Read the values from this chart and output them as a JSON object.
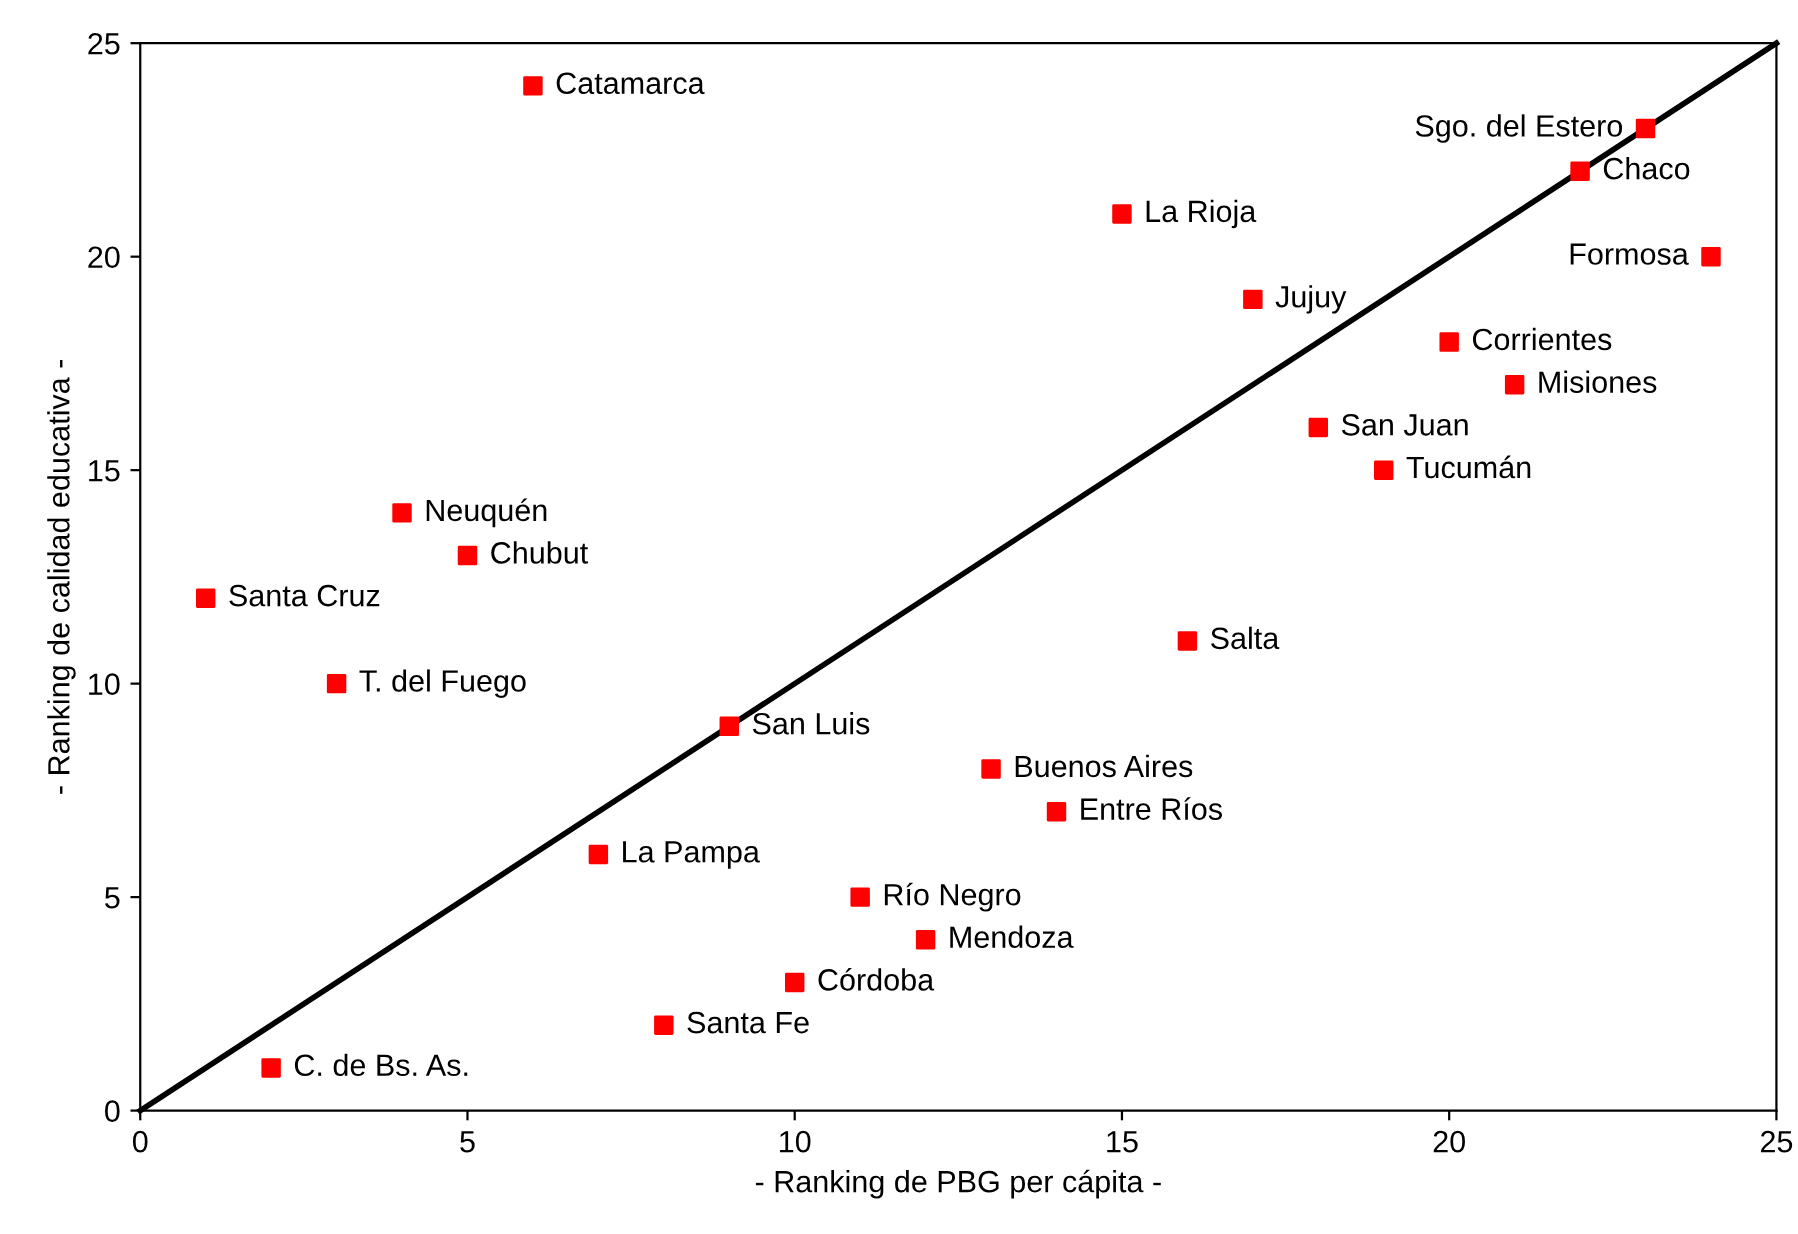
{
  "chart_data": {
    "type": "scatter",
    "xlabel": "- Ranking de PBG per cápita -",
    "ylabel": "- Ranking de calidad educativa -",
    "xlim": [
      0,
      25
    ],
    "ylim": [
      0,
      25
    ],
    "xticks": [
      0,
      5,
      10,
      15,
      20,
      25
    ],
    "yticks": [
      0,
      5,
      10,
      15,
      20,
      25
    ],
    "grid": false,
    "legend": false,
    "marker": "square",
    "series": [
      {
        "color": "#ff0000",
        "x": [
          6,
          23,
          22,
          15,
          24,
          17,
          20,
          21,
          18,
          19,
          4,
          5,
          1,
          16,
          3,
          9,
          13,
          14,
          7,
          11,
          12,
          10,
          8,
          2
        ],
        "values": [
          24,
          23,
          22,
          21,
          20,
          19,
          18,
          17,
          16,
          15,
          14,
          13,
          12,
          11,
          10,
          9,
          8,
          7,
          6,
          5,
          4,
          3,
          2,
          1
        ]
      },
      {
        "type": "line",
        "marker": "none",
        "color": "#000000",
        "x": [
          0,
          25
        ],
        "values": [
          0,
          25
        ]
      }
    ],
    "annotations": [
      {
        "text": "Catamarca",
        "x": 6,
        "y": 24
      },
      {
        "text": "Sgo. del Estero",
        "x": 23,
        "y": 23
      },
      {
        "text": "Chaco",
        "x": 22,
        "y": 22
      },
      {
        "text": "La Rioja",
        "x": 15,
        "y": 21
      },
      {
        "text": "Formosa",
        "x": 24,
        "y": 20
      },
      {
        "text": "Jujuy",
        "x": 17,
        "y": 19
      },
      {
        "text": "Corrientes",
        "x": 20,
        "y": 18
      },
      {
        "text": "Misiones",
        "x": 21,
        "y": 17
      },
      {
        "text": "San Juan",
        "x": 18,
        "y": 16
      },
      {
        "text": "Tucumán",
        "x": 19,
        "y": 15
      },
      {
        "text": "Neuquén",
        "x": 4,
        "y": 14
      },
      {
        "text": "Chubut",
        "x": 5,
        "y": 13
      },
      {
        "text": "Santa Cruz",
        "x": 1,
        "y": 12
      },
      {
        "text": "Salta",
        "x": 16,
        "y": 11
      },
      {
        "text": "T. del Fuego",
        "x": 3,
        "y": 10
      },
      {
        "text": "San Luis",
        "x": 9,
        "y": 9
      },
      {
        "text": "Buenos Aires",
        "x": 13,
        "y": 8
      },
      {
        "text": "Entre Ríos",
        "x": 14,
        "y": 7
      },
      {
        "text": "La Pampa",
        "x": 7,
        "y": 6
      },
      {
        "text": "Río Negro",
        "x": 11,
        "y": 5
      },
      {
        "text": "Mendoza",
        "x": 12,
        "y": 4
      },
      {
        "text": "Córdoba",
        "x": 10,
        "y": 3
      },
      {
        "text": "Santa Fe",
        "x": 8,
        "y": 2
      },
      {
        "text": "C. de Bs. As.",
        "x": 2,
        "y": 1
      }
    ]
  }
}
